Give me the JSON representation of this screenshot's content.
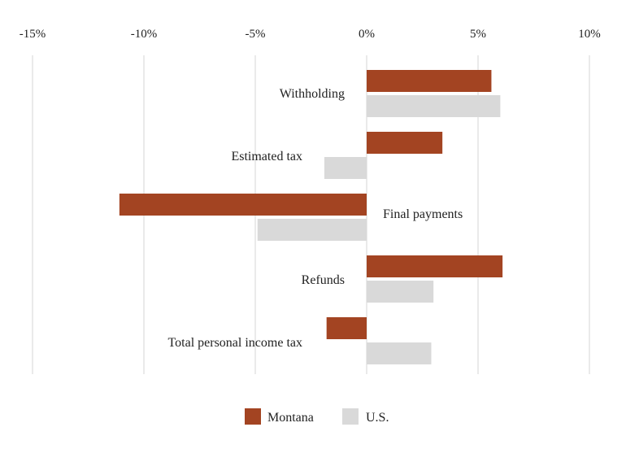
{
  "chart_data": {
    "type": "bar",
    "orientation": "horizontal",
    "categories": [
      "Withholding",
      "Estimated tax",
      "Final payments",
      "Refunds",
      "Total personal income tax"
    ],
    "series": [
      {
        "name": "Montana",
        "values": [
          5.6,
          3.4,
          -11.1,
          6.1,
          -1.8
        ]
      },
      {
        "name": "U.S.",
        "values": [
          6.0,
          -1.9,
          -4.9,
          3.0,
          2.9
        ]
      }
    ],
    "xlim": [
      -15,
      10
    ],
    "xticks": [
      -15,
      -10,
      -5,
      0,
      5,
      10
    ],
    "xtick_labels": [
      "-15%",
      "-10%",
      "-5%",
      "0%",
      "5%",
      "10%"
    ],
    "title": "",
    "xlabel": "",
    "ylabel": "",
    "grid": true,
    "legend": "bottom"
  },
  "colors": {
    "montana": "#a34422",
    "us": "#d9d9d9"
  }
}
